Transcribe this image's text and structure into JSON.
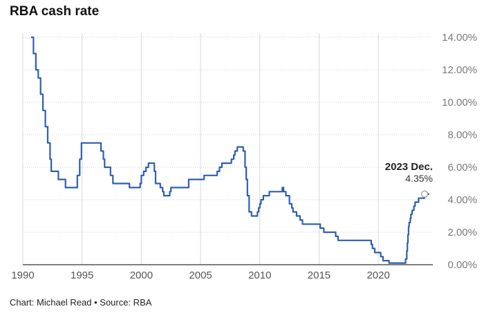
{
  "chart_data": {
    "type": "line",
    "title": "RBA cash rate",
    "footer": "Chart: Michael Read • Source: RBA",
    "xlim": [
      1990,
      2024.6
    ],
    "ylim": [
      0,
      14
    ],
    "x_ticks": [
      1990,
      1995,
      2000,
      2005,
      2010,
      2015,
      2020
    ],
    "y_ticks": [
      0,
      2,
      4,
      6,
      8,
      10,
      12,
      14
    ],
    "y_tick_labels": [
      "0.00%",
      "2.00%",
      "4.00%",
      "6.00%",
      "8.00%",
      "10.00%",
      "12.00%",
      "14.00%"
    ],
    "grid": {
      "vertical": true,
      "horizontal": true
    },
    "y_axis_side": "right",
    "line_color": "#2d5fb0",
    "annotation": {
      "label": "2023 Dec.",
      "value_label": "4.35%",
      "x": 2023.9,
      "y": 4.35
    },
    "series": [
      {
        "x": [
          1990.7,
          1990.9,
          1991.1,
          1991.3,
          1991.5,
          1991.7,
          1991.9,
          1992.1,
          1992.3,
          1992.4,
          1993.0,
          1993.3,
          1993.6,
          1994.6,
          1994.8,
          1994.95,
          1996.6,
          1996.8,
          1996.9,
          1997.4,
          1997.6,
          1999.0,
          1999.9,
          2000.0,
          2000.2,
          2000.4,
          2000.6,
          2001.1,
          2001.2,
          2001.4,
          2001.6,
          2001.8,
          2001.9,
          2002.4,
          2002.5,
          2003.9,
          2004.0,
          2005.2,
          2005.3,
          2006.4,
          2006.6,
          2006.8,
          2006.9,
          2007.6,
          2007.8,
          2007.9,
          2008.1,
          2008.2,
          2008.6,
          2008.75,
          2008.85,
          2008.95,
          2009.1,
          2009.3,
          2009.8,
          2009.9,
          2010.0,
          2010.1,
          2010.3,
          2010.8,
          2011.9,
          2012.0,
          2012.2,
          2012.5,
          2012.7,
          2012.8,
          2013.1,
          2013.4,
          2013.6,
          2015.1,
          2015.4,
          2016.4,
          2016.6,
          2019.4,
          2019.5,
          2019.7,
          2019.8,
          2020.2,
          2020.4,
          2020.9,
          2022.3,
          2022.4,
          2022.45,
          2022.5,
          2022.55,
          2022.6,
          2022.7,
          2022.75,
          2022.85,
          2022.95,
          2023.0,
          2023.1,
          2023.25,
          2023.4,
          2023.5,
          2023.85,
          2023.9,
          2024.3
        ],
        "y": [
          14.0,
          13.0,
          12.0,
          11.5,
          10.5,
          9.5,
          8.5,
          7.5,
          6.5,
          5.75,
          5.25,
          5.25,
          4.75,
          5.5,
          6.5,
          7.5,
          7.0,
          6.5,
          6.0,
          5.5,
          5.0,
          4.75,
          5.0,
          5.5,
          5.75,
          6.0,
          6.25,
          5.75,
          5.0,
          5.0,
          4.75,
          4.5,
          4.25,
          4.5,
          4.75,
          4.75,
          5.25,
          5.25,
          5.5,
          5.75,
          6.0,
          6.25,
          6.25,
          6.5,
          6.75,
          7.0,
          7.25,
          7.25,
          7.0,
          6.0,
          5.25,
          4.25,
          3.25,
          3.0,
          3.25,
          3.5,
          3.75,
          4.0,
          4.25,
          4.5,
          4.75,
          4.5,
          4.25,
          3.75,
          3.5,
          3.25,
          3.0,
          2.75,
          2.5,
          2.25,
          2.0,
          1.75,
          1.5,
          1.25,
          1.0,
          0.75,
          0.75,
          0.5,
          0.25,
          0.1,
          0.35,
          0.85,
          1.35,
          1.85,
          2.35,
          2.6,
          2.85,
          3.1,
          3.35,
          3.35,
          3.6,
          3.85,
          3.85,
          4.1,
          4.1,
          4.1,
          4.35,
          4.35
        ]
      }
    ]
  }
}
